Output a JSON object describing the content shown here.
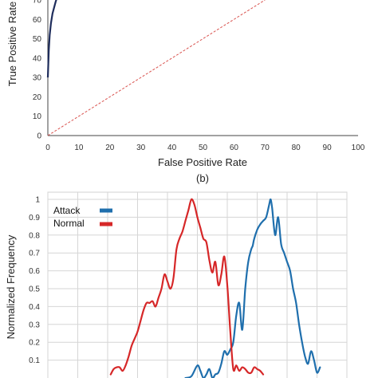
{
  "chart_data": [
    {
      "type": "line",
      "panel_label": "(b)",
      "title": "",
      "xlabel": "False Positive Rate",
      "ylabel": "True Positive Rate",
      "xlim": [
        0,
        100
      ],
      "ylim": [
        0,
        70
      ],
      "x_ticks": [
        "0",
        "10",
        "20",
        "30",
        "40",
        "50",
        "60",
        "70",
        "80",
        "90",
        "100"
      ],
      "y_ticks": [
        "0",
        "10",
        "20",
        "30",
        "40",
        "50",
        "60",
        "70"
      ],
      "grid": false,
      "series": [
        {
          "name": "",
          "color": "#1f2d5c",
          "style": "solid",
          "x": [
            0,
            0.3,
            0.6,
            1.0,
            1.5,
            2.0,
            2.5,
            3.0
          ],
          "y": [
            30,
            44,
            52,
            58,
            63,
            66,
            69,
            71.5
          ]
        },
        {
          "name": "",
          "color": "#d9534f",
          "style": "dashed",
          "x": [
            0,
            70
          ],
          "y": [
            0,
            70
          ]
        }
      ]
    },
    {
      "type": "line",
      "title": "",
      "xlabel": "",
      "ylabel": "Normalized Frequency",
      "xlim": [
        0,
        100
      ],
      "ylim": [
        0,
        1
      ],
      "y_ticks": [
        "0.1",
        "0.2",
        "0.3",
        "0.4",
        "0.5",
        "0.6",
        "0.7",
        "0.8",
        "0.9",
        "1"
      ],
      "grid": true,
      "legend_position": "top-left",
      "series": [
        {
          "name": "Attack",
          "color": "#1f6fad",
          "x": [
            46,
            48,
            50,
            51,
            52,
            53,
            54,
            55,
            56,
            57,
            58,
            59,
            60,
            61,
            62,
            63,
            64,
            65,
            66,
            67,
            68,
            68.5,
            69,
            70,
            71,
            72,
            73,
            74,
            74.5,
            75,
            76,
            77,
            78,
            79,
            80,
            81,
            82,
            83,
            84,
            85,
            86,
            87,
            88,
            89,
            90,
            91
          ],
          "y": [
            0,
            0.01,
            0.07,
            0.04,
            0,
            0.02,
            0.05,
            0,
            0.02,
            0.03,
            0.08,
            0.15,
            0.13,
            0.16,
            0.2,
            0.35,
            0.42,
            0.27,
            0.5,
            0.65,
            0.72,
            0.74,
            0.78,
            0.83,
            0.86,
            0.88,
            0.9,
            0.97,
            1.0,
            0.95,
            0.8,
            0.9,
            0.75,
            0.7,
            0.65,
            0.6,
            0.5,
            0.42,
            0.3,
            0.2,
            0.12,
            0.08,
            0.15,
            0.1,
            0.03,
            0.06
          ]
        },
        {
          "name": "Normal",
          "color": "#d62728",
          "x": [
            21,
            22,
            23,
            24,
            25,
            26,
            27,
            28,
            29,
            30,
            31,
            32,
            33,
            34,
            35,
            36,
            37,
            38,
            39,
            40,
            41,
            42,
            43,
            44,
            45,
            46,
            47,
            48,
            49,
            50,
            51,
            52,
            53,
            54,
            55,
            56,
            57,
            58,
            59,
            60,
            61,
            62,
            63,
            64,
            65,
            66,
            67,
            68,
            69,
            70,
            71,
            72
          ],
          "y": [
            0.02,
            0.05,
            0.06,
            0.06,
            0.04,
            0.07,
            0.12,
            0.18,
            0.22,
            0.26,
            0.32,
            0.38,
            0.42,
            0.42,
            0.43,
            0.4,
            0.45,
            0.5,
            0.58,
            0.54,
            0.5,
            0.56,
            0.72,
            0.78,
            0.82,
            0.88,
            0.94,
            1.0,
            0.97,
            0.9,
            0.84,
            0.78,
            0.76,
            0.66,
            0.59,
            0.65,
            0.52,
            0.58,
            0.68,
            0.52,
            0.26,
            0.05,
            0.07,
            0.04,
            0.06,
            0.05,
            0.03,
            0.03,
            0.06,
            0.05,
            0.04,
            0.02
          ]
        }
      ]
    }
  ]
}
